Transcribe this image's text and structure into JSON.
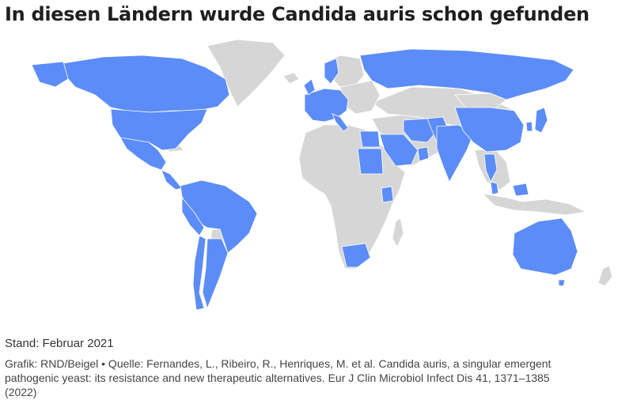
{
  "title": "In diesen Ländern wurde Candida auris schon gefunden",
  "map": {
    "highlight_color": "#5c8cf7",
    "base_color": "#d6d6d6",
    "countries_highlighted": [
      "USA",
      "Kanada",
      "Mexiko",
      "Panama",
      "Kolumbien",
      "Venezuela",
      "Peru",
      "Brasilien",
      "Chile",
      "Argentinien",
      "Spanien",
      "Frankreich",
      "Deutschland",
      "Niederlande",
      "Belgien",
      "Österreich",
      "Schweiz",
      "Italien",
      "Griechenland",
      "Norwegen",
      "Polen",
      "Russland",
      "Israel",
      "Ägypten",
      "Sudan",
      "Saudi-Arabien",
      "Kuwait",
      "Oman",
      "VAE",
      "Katar",
      "Iran",
      "Pakistan",
      "Indien",
      "China",
      "Südkorea",
      "Japan",
      "Thailand",
      "Malaysia",
      "Singapur",
      "Kenia",
      "Südafrika",
      "Australien"
    ]
  },
  "stand": "Stand: Februar 2021",
  "credit_line1": "Grafik: RND/Beigel • Quelle: Fernandes, L., Ribeiro, R., Henriques, M. et al. Candida auris, a singular emergent",
  "credit_line2": "pathogenic yeast: its resistance and new therapeutic alternatives. Eur J Clin Microbiol Infect Dis 41, 1371–1385",
  "credit_line3": "(2022)"
}
